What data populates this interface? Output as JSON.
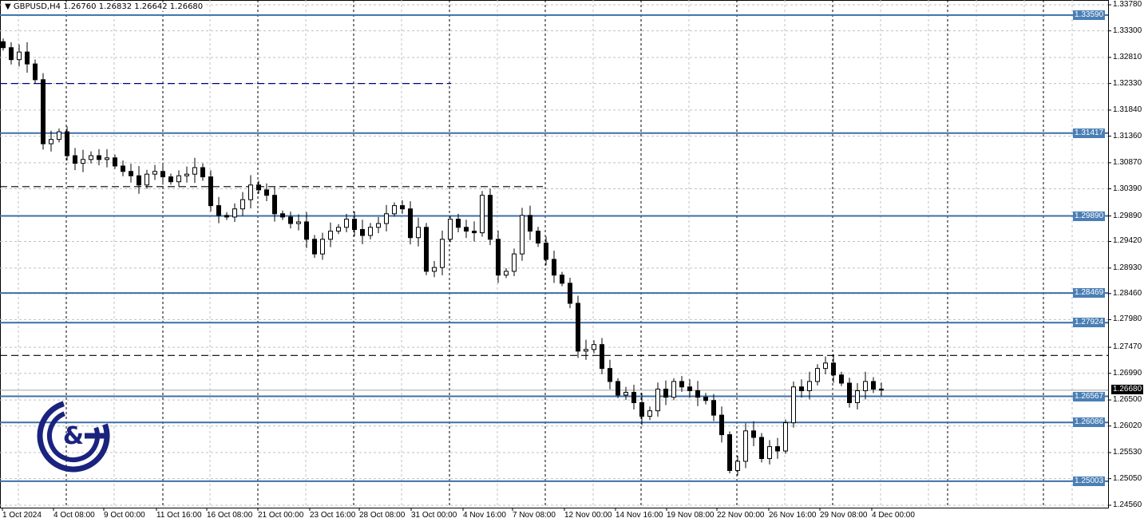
{
  "header": {
    "symbol": "GBPUSD,H4",
    "open": "1.26760",
    "high": "1.26832",
    "low": "1.26642",
    "close": "1.26680"
  },
  "colors": {
    "level": "#3d6fa8",
    "candle": "#000000",
    "grid": "#c0c0c0",
    "navy_line": "#000080"
  },
  "chart_data": {
    "type": "candlestick",
    "symbol": "GBPUSD",
    "timeframe": "H4",
    "ylim": [
      1.2456,
      1.3378
    ],
    "y_ticks": [
      "1.33780",
      "1.33300",
      "1.32810",
      "1.32330",
      "1.31840",
      "1.31360",
      "1.30870",
      "1.30390",
      "1.29890",
      "1.29420",
      "1.28930",
      "1.28460",
      "1.27980",
      "1.27470",
      "1.26990",
      "1.26500",
      "1.26020",
      "1.25530",
      "1.25050",
      "1.24560"
    ],
    "x_ticks": [
      "1 Oct 2024",
      "4 Oct 08:00",
      "9 Oct 00:00",
      "11 Oct 16:00",
      "16 Oct 08:00",
      "21 Oct 00:00",
      "23 Oct 16:00",
      "28 Oct 08:00",
      "31 Oct 00:00",
      "4 Nov 16:00",
      "7 Nov 08:00",
      "12 Nov 00:00",
      "14 Nov 16:00",
      "19 Nov 08:00",
      "22 Nov 00:00",
      "26 Nov 16:00",
      "29 Nov 08:00",
      "4 Dec 00:00"
    ],
    "first_open": 1.331,
    "close": [
      1.3299,
      1.3277,
      1.3291,
      1.3269,
      1.324,
      1.3122,
      1.313,
      1.3144,
      1.31,
      1.3086,
      1.3093,
      1.31,
      1.3093,
      1.3096,
      1.3081,
      1.3071,
      1.3063,
      1.3046,
      1.3066,
      1.3071,
      1.3061,
      1.3052,
      1.3063,
      1.3066,
      1.3078,
      1.3061,
      1.3008,
      1.299,
      1.2987,
      1.3002,
      1.3019,
      1.3046,
      1.3037,
      1.3027,
      1.2993,
      1.2987,
      1.2975,
      1.2978,
      1.2946,
      1.2919,
      1.2946,
      1.2961,
      1.2968,
      1.2983,
      1.2964,
      1.2953,
      1.2968,
      1.2975,
      1.2993,
      1.3008,
      1.3002,
      1.2949,
      1.2968,
      1.2887,
      1.2894,
      1.2946,
      1.2983,
      1.2968,
      1.2961,
      1.2958,
      1.3027,
      1.2946,
      1.288,
      1.2887,
      1.2919,
      1.299,
      1.2961,
      1.2939,
      1.2909,
      1.288,
      1.2865,
      1.2828,
      1.274,
      1.2743,
      1.2752,
      1.2708,
      1.2684,
      1.2659,
      1.2664,
      1.2645,
      1.262,
      1.263,
      1.267,
      1.2655,
      1.2684,
      1.2674,
      1.2667,
      1.2655,
      1.2649,
      1.2622,
      1.2586,
      1.252,
      1.2537,
      1.2593,
      1.2581,
      1.2542,
      1.2564,
      1.2556,
      1.2608,
      1.2674,
      1.2667,
      1.2684,
      1.2708,
      1.2718,
      1.2696,
      1.2681,
      1.2645,
      1.2667,
      1.2684,
      1.267,
      1.2668
    ],
    "levels": [
      "1.33590",
      "1.31417",
      "1.29890",
      "1.28469",
      "1.27924",
      "1.26567",
      "1.26086",
      "1.25003"
    ],
    "current_price": "1.26680",
    "dashed_lines": [
      {
        "price": 1.3233,
        "color": "#000080",
        "extent": "partial"
      },
      {
        "price": 1.3043,
        "color": "#000000",
        "extent": "partial"
      },
      {
        "price": 1.2732,
        "color": "#000000",
        "extent": "full"
      }
    ]
  },
  "logo": {
    "text": "G&G"
  }
}
